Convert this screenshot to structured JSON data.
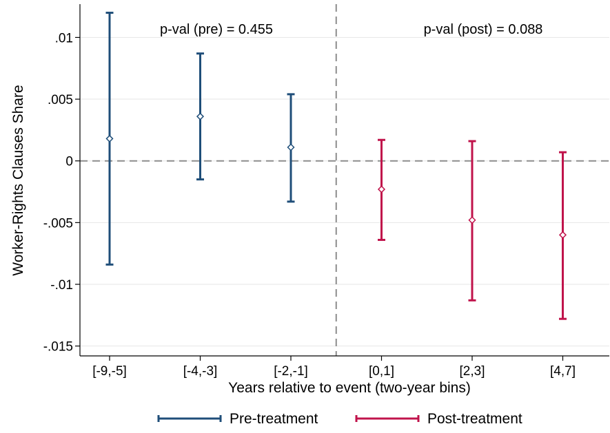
{
  "chart_data": {
    "type": "scatter",
    "xlabel": "Years relative to event (two-year bins)",
    "ylabel": "Worker-Rights Clauses Share",
    "categories": [
      "[-9,-5]",
      "[-4,-3]",
      "[-2,-1]",
      "[0,1]",
      "[2,3]",
      "[4,7]"
    ],
    "ylim": [
      -0.0158,
      0.0127
    ],
    "yticks": [
      {
        "value": 0.01,
        "label": ".01"
      },
      {
        "value": 0.005,
        "label": ".005"
      },
      {
        "value": 0,
        "label": "0"
      },
      {
        "value": -0.005,
        "label": "-.005"
      },
      {
        "value": -0.01,
        "label": "-.01"
      },
      {
        "value": -0.015,
        "label": "-.015"
      }
    ],
    "grid": true,
    "reference_lines": {
      "horizontal_at": 0,
      "vertical_between": [
        "[-2,-1]",
        "[0,1]"
      ]
    },
    "series": [
      {
        "name": "Pre-treatment",
        "color": "#1f4e79",
        "categories": [
          "[-9,-5]",
          "[-4,-3]",
          "[-2,-1]"
        ],
        "estimates": [
          0.0018,
          0.0036,
          0.0011
        ],
        "ci_low": [
          -0.0084,
          -0.0015,
          -0.0033
        ],
        "ci_high": [
          0.012,
          0.0087,
          0.0054
        ]
      },
      {
        "name": "Post-treatment",
        "color": "#c0134b",
        "categories": [
          "[0,1]",
          "[2,3]",
          "[4,7]"
        ],
        "estimates": [
          -0.0023,
          -0.0048,
          -0.006
        ],
        "ci_low": [
          -0.0064,
          -0.0113,
          -0.0128
        ],
        "ci_high": [
          0.0017,
          0.0016,
          0.0007
        ]
      }
    ],
    "annotations": [
      {
        "text": "p-val (pre) = 0.455",
        "region": "pre"
      },
      {
        "text": "p-val (post) = 0.088",
        "region": "post"
      }
    ],
    "legend": {
      "placement": "bottom",
      "entries": [
        "Pre-treatment",
        "Post-treatment"
      ]
    }
  }
}
